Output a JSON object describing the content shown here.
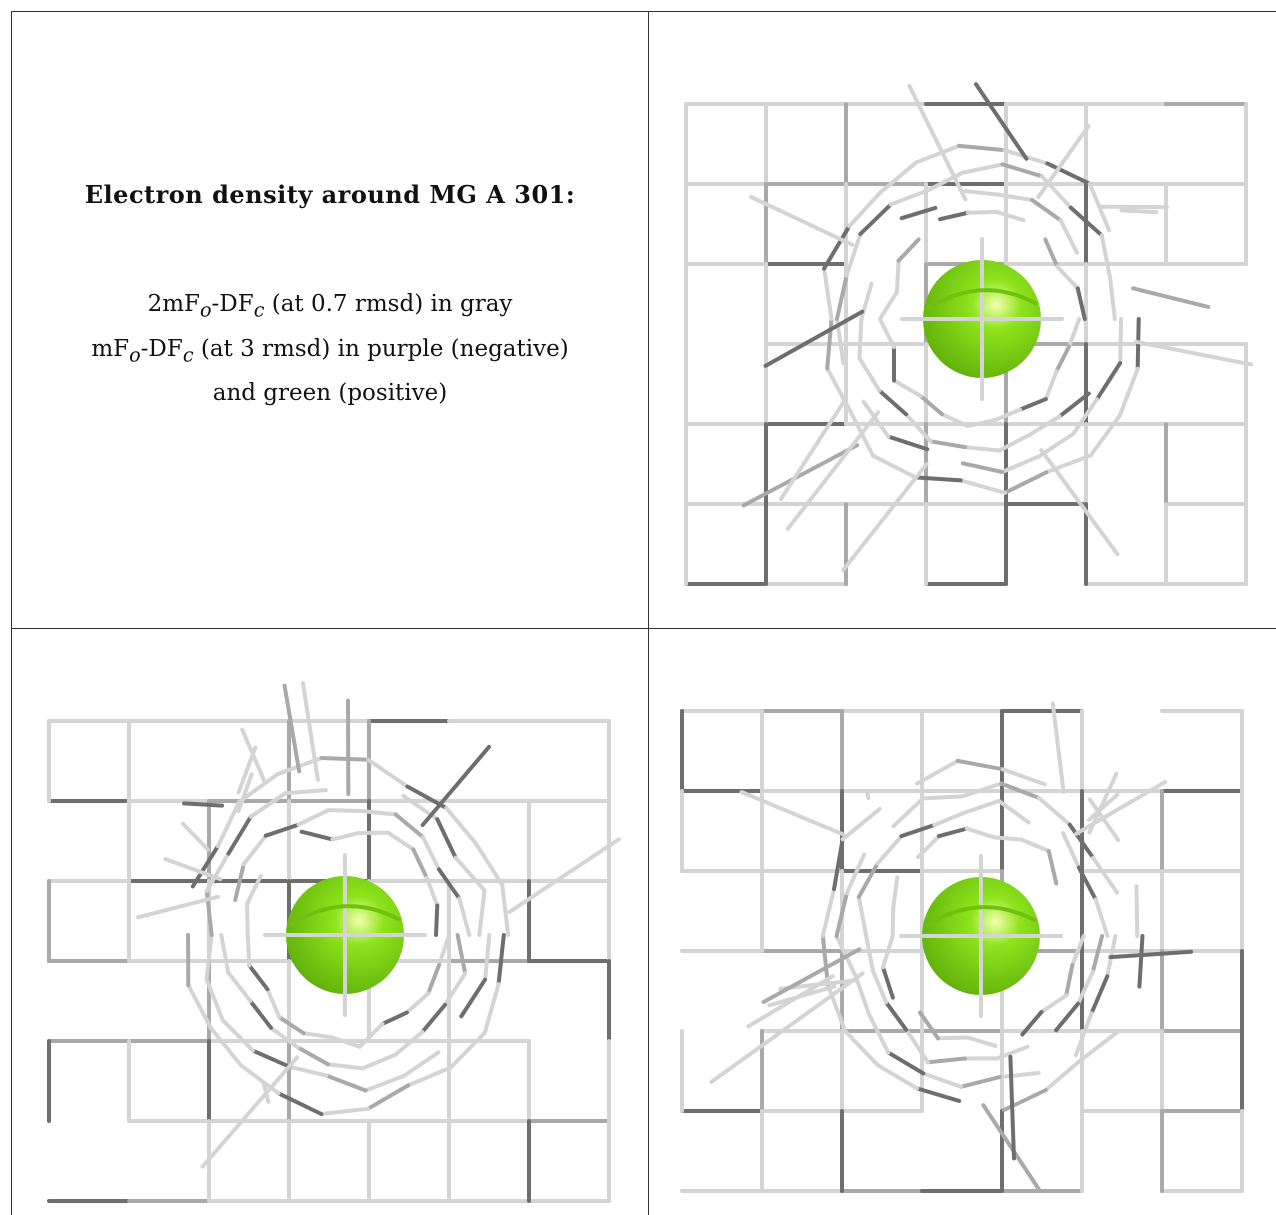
{
  "caption": {
    "title": "Electron density around MG A 301:",
    "line1": {
      "prefix": "2mF",
      "sub1": "o",
      "mid": "-DF",
      "sub2": "c",
      "suffix": " (at 0.7 rmsd) in gray"
    },
    "line2": {
      "prefix": "mF",
      "sub1": "o",
      "mid": "-DF",
      "sub2": "c",
      "suffix": " (at 3 rmsd) in purple (negative)"
    },
    "line3": "and green (positive)"
  },
  "colors": {
    "mesh_light": "#d4d4d4",
    "mesh_mid": "#a9a9a9",
    "mesh_dark": "#6e6e6e",
    "atom": "#8ee41c",
    "atom_highlight": "#f4ffb0",
    "border": "#333333"
  },
  "panels": [
    {
      "name": "view-1",
      "atom": "MG"
    },
    {
      "name": "view-2",
      "atom": "MG"
    },
    {
      "name": "view-3",
      "atom": "MG"
    }
  ]
}
